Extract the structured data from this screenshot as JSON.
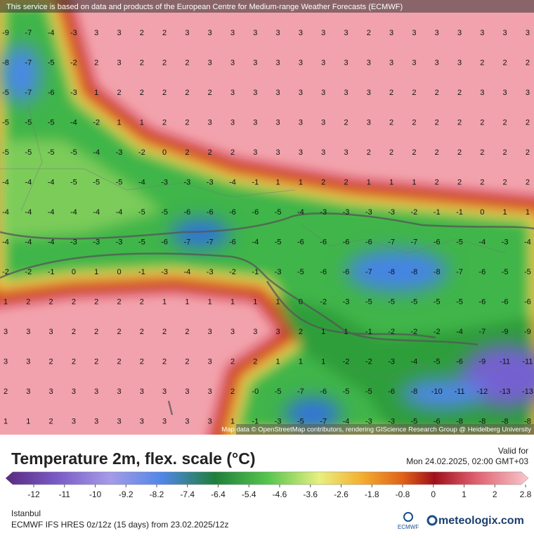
{
  "header": {
    "notice": "This service is based on data and products of the European Centre for Medium-range Weather Forecasts (ECMWF)"
  },
  "map": {
    "attribution": "Map data © OpenStreetMap contributors, rendering GIScience Research Group @ Heidelberg University",
    "grid": [
      [
        "-9",
        "-7",
        "-4",
        "-3",
        "3",
        "3",
        "2",
        "2",
        "3",
        "3",
        "3",
        "3",
        "3",
        "3",
        "3",
        "3",
        "2",
        "3",
        "3",
        "3",
        "3",
        "3",
        "3",
        "3"
      ],
      [
        "-8",
        "-7",
        "-5",
        "-2",
        "2",
        "3",
        "2",
        "2",
        "2",
        "3",
        "3",
        "3",
        "3",
        "3",
        "3",
        "3",
        "3",
        "3",
        "3",
        "3",
        "3",
        "2",
        "2",
        "2"
      ],
      [
        "-5",
        "-7",
        "-6",
        "-3",
        "1",
        "2",
        "2",
        "2",
        "2",
        "2",
        "3",
        "3",
        "3",
        "3",
        "3",
        "3",
        "3",
        "2",
        "2",
        "2",
        "2",
        "3",
        "3",
        "3"
      ],
      [
        "-5",
        "-5",
        "-5",
        "-4",
        "-2",
        "1",
        "1",
        "2",
        "2",
        "3",
        "3",
        "3",
        "3",
        "3",
        "3",
        "2",
        "3",
        "2",
        "2",
        "2",
        "2",
        "2",
        "2",
        "2"
      ],
      [
        "-5",
        "-5",
        "-5",
        "-5",
        "-4",
        "-3",
        "-2",
        "0",
        "2",
        "2",
        "2",
        "3",
        "3",
        "3",
        "3",
        "3",
        "2",
        "2",
        "2",
        "2",
        "2",
        "2",
        "2",
        "2"
      ],
      [
        "-4",
        "-4",
        "-4",
        "-5",
        "-5",
        "-5",
        "-4",
        "-3",
        "-3",
        "-3",
        "-4",
        "-1",
        "1",
        "1",
        "2",
        "2",
        "1",
        "1",
        "1",
        "2",
        "2",
        "2",
        "2",
        "2"
      ],
      [
        "-4",
        "-4",
        "-4",
        "-4",
        "-4",
        "-4",
        "-5",
        "-5",
        "-6",
        "-6",
        "-6",
        "-6",
        "-5",
        "-4",
        "-3",
        "-3",
        "-3",
        "-3",
        "-2",
        "-1",
        "-1",
        "0",
        "1",
        "1"
      ],
      [
        "-4",
        "-4",
        "-4",
        "-3",
        "-3",
        "-3",
        "-5",
        "-6",
        "-7",
        "-7",
        "-6",
        "-4",
        "-5",
        "-6",
        "-6",
        "-6",
        "-6",
        "-7",
        "-7",
        "-6",
        "-5",
        "-4",
        "-3",
        "-4"
      ],
      [
        "-2",
        "-2",
        "-1",
        "0",
        "1",
        "0",
        "-1",
        "-3",
        "-4",
        "-3",
        "-2",
        "-1",
        "-3",
        "-5",
        "-6",
        "-6",
        "-7",
        "-8",
        "-8",
        "-8",
        "-7",
        "-6",
        "-5",
        "-5"
      ],
      [
        "1",
        "2",
        "2",
        "2",
        "2",
        "2",
        "2",
        "1",
        "1",
        "1",
        "1",
        "1",
        "1",
        "0",
        "-2",
        "-3",
        "-5",
        "-5",
        "-5",
        "-5",
        "-5",
        "-6",
        "-6",
        "-6"
      ],
      [
        "3",
        "3",
        "3",
        "2",
        "2",
        "2",
        "2",
        "2",
        "2",
        "3",
        "3",
        "3",
        "3",
        "2",
        "1",
        "1",
        "-1",
        "-2",
        "-2",
        "-2",
        "-4",
        "-7",
        "-9",
        "-9"
      ],
      [
        "3",
        "3",
        "2",
        "2",
        "2",
        "2",
        "2",
        "2",
        "2",
        "3",
        "2",
        "2",
        "1",
        "1",
        "1",
        "-2",
        "-2",
        "-3",
        "-4",
        "-5",
        "-6",
        "-9",
        "-11",
        "-11"
      ],
      [
        "2",
        "3",
        "3",
        "3",
        "3",
        "3",
        "3",
        "3",
        "3",
        "3",
        "2",
        "-0",
        "-5",
        "-7",
        "-6",
        "-5",
        "-5",
        "-6",
        "-8",
        "-10",
        "-11",
        "-12",
        "-13",
        "-13"
      ],
      [
        "1",
        "1",
        "2",
        "3",
        "3",
        "3",
        "3",
        "3",
        "3",
        "3",
        "1",
        "-1",
        "-3",
        "-5",
        "-7",
        "-4",
        "-3",
        "-3",
        "-5",
        "-6",
        "-8",
        "-8",
        "-8",
        "-8"
      ]
    ]
  },
  "footer": {
    "title": "Temperature 2m, flex. scale (°C)",
    "valid_label": "Valid for",
    "valid_time": "Mon 24.02.2025, 02:00 GMT+03",
    "colorbar_ticks": [
      "-12",
      "-11",
      "-10",
      "-9.2",
      "-8.2",
      "-7.4",
      "-6.4",
      "-5.4",
      "-4.6",
      "-3.6",
      "-2.6",
      "-1.8",
      "-0.8",
      "0",
      "1",
      "2",
      "2.8"
    ],
    "location": "Istanbul",
    "model": "ECMWF IFS HRES 0z/12z (15 days) from 23.02.2025/12z",
    "ecmwf_logo": "ECMWF",
    "brand": "meteologix.com"
  }
}
